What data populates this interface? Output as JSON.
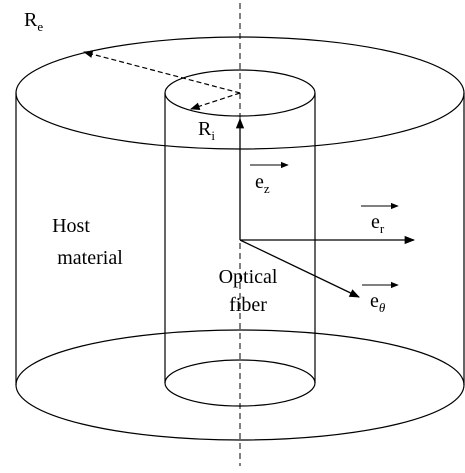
{
  "labels": {
    "outer_radius": {
      "main": "R",
      "sub": "e"
    },
    "inner_radius": {
      "main": "R",
      "sub": "i"
    },
    "axial_vector": {
      "main": "e",
      "sub": "z"
    },
    "radial_vector": {
      "main": "e",
      "sub": "r"
    },
    "hoop_vector": {
      "main": "e",
      "sub": "θ"
    },
    "host_material": [
      "Host",
      "material"
    ],
    "optical_fiber": [
      "Optical",
      "fiber"
    ]
  }
}
